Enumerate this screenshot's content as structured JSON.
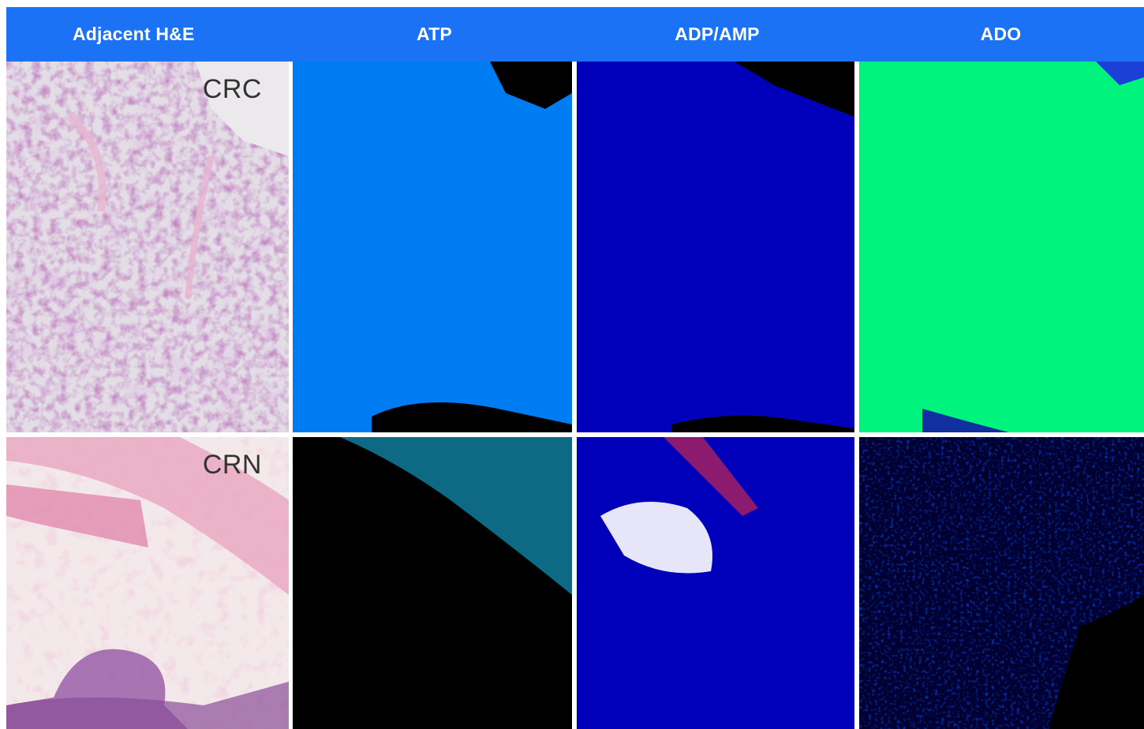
{
  "header": {
    "columns": [
      "Adjacent H&E",
      "ATP",
      "ADP/AMP",
      "ADO"
    ]
  },
  "rows": [
    {
      "label": "CRC"
    },
    {
      "label": "CRN"
    }
  ],
  "colors": {
    "header_bg": "#1b72f4",
    "header_text": "#ffffff"
  }
}
